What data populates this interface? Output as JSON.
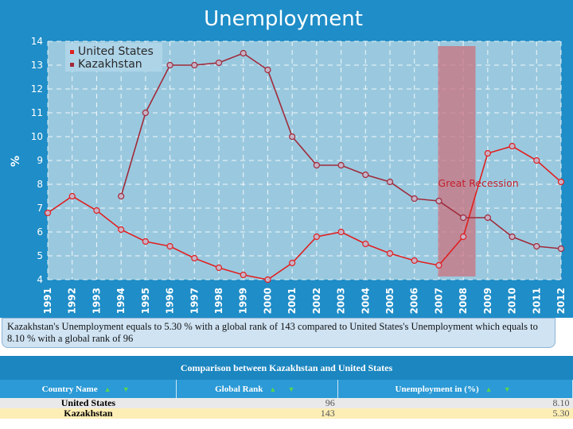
{
  "chart_data": {
    "type": "line",
    "title": "Unemployment",
    "ylabel": "%",
    "ylim": [
      4,
      14
    ],
    "yticks": [
      4,
      5,
      6,
      7,
      8,
      9,
      10,
      11,
      12,
      13,
      14
    ],
    "grid": true,
    "legend_position": "top-left",
    "categories": [
      "1991",
      "1992",
      "1993",
      "1994",
      "1995",
      "1996",
      "1997",
      "1998",
      "1999",
      "2000",
      "2001",
      "2002",
      "2003",
      "2004",
      "2005",
      "2006",
      "2007",
      "2008",
      "2009",
      "2010",
      "2011",
      "2012"
    ],
    "series": [
      {
        "name": "United States",
        "color": "#e02020",
        "values": [
          6.8,
          7.5,
          6.9,
          6.1,
          5.6,
          5.4,
          4.9,
          4.5,
          4.2,
          4.0,
          4.7,
          5.8,
          6.0,
          5.5,
          5.1,
          4.8,
          4.6,
          5.8,
          9.3,
          9.6,
          9.0,
          8.1
        ]
      },
      {
        "name": "Kazakhstan",
        "color": "#a02a3a",
        "values": [
          null,
          null,
          null,
          7.5,
          11.0,
          13.0,
          13.0,
          13.1,
          13.5,
          12.8,
          10.0,
          8.8,
          8.8,
          8.4,
          8.1,
          7.4,
          7.3,
          6.6,
          6.6,
          5.8,
          5.4,
          5.3
        ]
      }
    ],
    "annotations": [
      {
        "label": "Great Recession",
        "x_start": "2007",
        "x_end": "2008.5"
      }
    ]
  },
  "description": "Kazakhstan's Unemployment equals to 5.30 % with a global rank of 143 compared to United States's Unemployment which equals to 8.10 % with a global rank of 96",
  "comparison": {
    "title": "Comparison between Kazakhstan and United States",
    "columns": [
      "Country Name",
      "Global Rank",
      "Unemployment in (%)"
    ],
    "sort_arrows": "▲ ▼",
    "rows": [
      {
        "country": "United States",
        "rank": "96",
        "value": "8.10"
      },
      {
        "country": "Kazakhstan",
        "rank": "143",
        "value": "5.30"
      }
    ]
  }
}
